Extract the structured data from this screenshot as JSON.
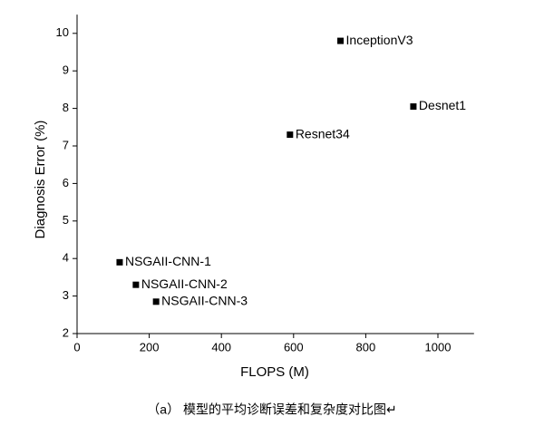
{
  "chart_data": {
    "type": "scatter",
    "x_label": "FLOPS (M)",
    "y_label": "Diagnosis Error (%)",
    "x": [
      730,
      932,
      590,
      118,
      163,
      219
    ],
    "values": [
      9.8,
      8.05,
      7.3,
      3.9,
      3.3,
      2.85
    ],
    "point_labels": [
      "InceptionV3",
      "Desnet1",
      "Resnet34",
      "NSGAII-CNN-1",
      "NSGAII-CNN-2",
      "NSGAII-CNN-3"
    ],
    "color": "#000000",
    "xlim": [
      0,
      1100
    ],
    "xticks": [
      0,
      200,
      400,
      600,
      800,
      1000
    ],
    "ylim": [
      2,
      10.5
    ],
    "yticks": [
      2,
      3,
      4,
      5,
      6,
      7,
      8,
      9,
      10
    ],
    "caption": "（a）   模型的平均诊断误差和复杂度对比图↵"
  }
}
